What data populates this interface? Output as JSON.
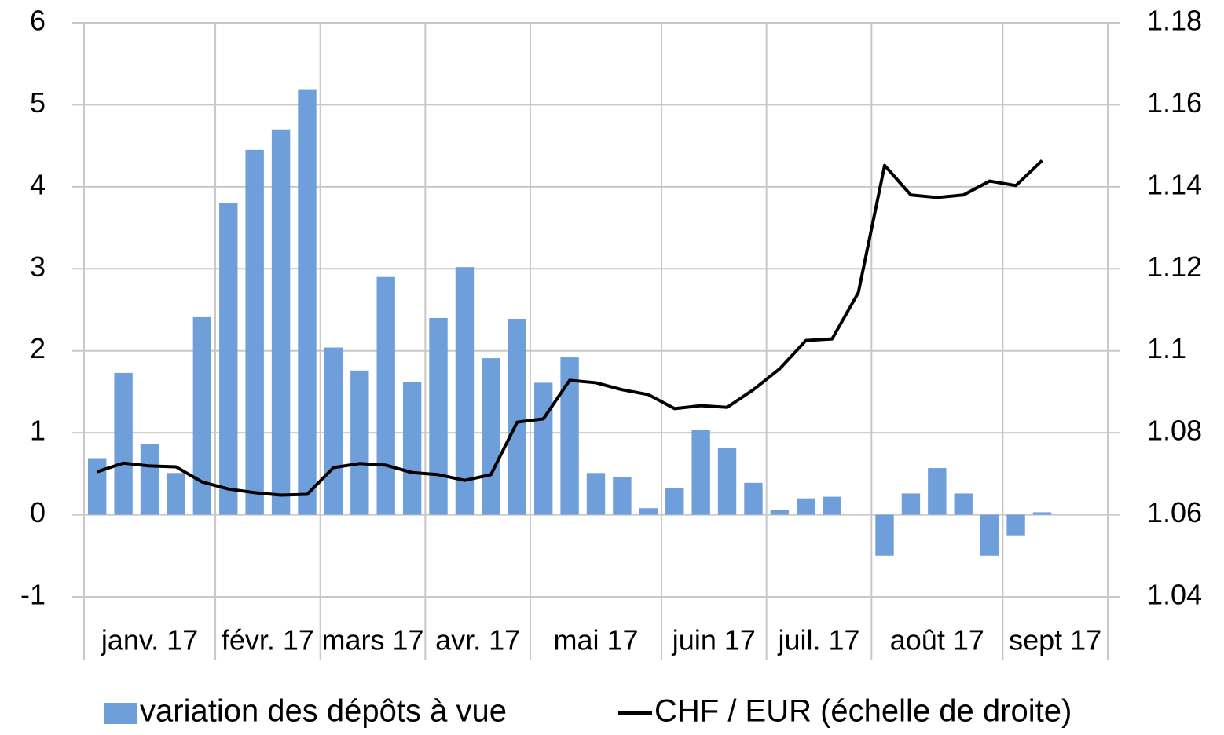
{
  "chart_data": {
    "type": "bar_line",
    "categories": [
      null,
      null,
      null,
      null,
      null,
      null,
      null,
      null,
      null,
      null,
      null,
      null,
      null,
      null,
      null,
      null,
      null,
      null,
      null,
      null,
      null,
      null,
      null,
      null,
      null,
      null,
      null,
      null,
      null,
      null,
      null,
      null,
      null,
      null,
      null,
      null,
      null,
      null,
      null
    ],
    "groups": [
      {
        "label": "janv. 17",
        "span": 5
      },
      {
        "label": "févr. 17",
        "span": 4
      },
      {
        "label": "mars 17",
        "span": 4
      },
      {
        "label": "avr. 17",
        "span": 4
      },
      {
        "label": "mai 17",
        "span": 5
      },
      {
        "label": "juin 17",
        "span": 4
      },
      {
        "label": "juil. 17",
        "span": 4
      },
      {
        "label": "août 17",
        "span": 5
      },
      {
        "label": "sept 17",
        "span": 4
      }
    ],
    "series": [
      {
        "name": "variation des dépôts à vue",
        "type": "bar",
        "color": "#6f9fdb",
        "values": [
          0.69,
          1.73,
          0.86,
          0.51,
          2.41,
          3.8,
          4.45,
          4.7,
          5.19,
          2.04,
          1.76,
          2.9,
          1.62,
          2.4,
          3.02,
          1.91,
          2.39,
          1.61,
          1.92,
          0.51,
          0.46,
          0.08,
          0.33,
          1.03,
          0.81,
          0.39,
          0.06,
          0.2,
          0.22,
          null,
          -0.5,
          0.26,
          0.57,
          0.26,
          -0.5,
          -0.25,
          0.03,
          null,
          null
        ]
      },
      {
        "name": "CHF / EUR (échelle de droite)",
        "type": "line",
        "axis": "y2",
        "color": "#000000",
        "values": [
          1.0705,
          1.0726,
          1.0719,
          1.0717,
          1.068,
          1.0663,
          1.0654,
          1.0648,
          1.065,
          1.0715,
          1.0725,
          1.0721,
          1.0703,
          1.0698,
          1.0684,
          1.0698,
          1.0826,
          1.0834,
          1.0928,
          1.0922,
          1.0905,
          1.0893,
          1.0859,
          1.0866,
          1.0862,
          1.0905,
          1.0956,
          1.1025,
          1.1029,
          1.1142,
          1.1452,
          1.138,
          1.1374,
          1.138,
          1.1414,
          1.1403,
          1.1464,
          null,
          null
        ]
      }
    ],
    "ylim": [
      -1,
      6
    ],
    "yticks": [
      -1,
      0,
      1,
      2,
      3,
      4,
      5,
      6
    ],
    "y2lim": [
      1.04,
      1.18
    ],
    "y2ticks": [
      1.04,
      1.06,
      1.08,
      1.1,
      1.12,
      1.14,
      1.16,
      1.18
    ],
    "grid": true,
    "legend": "bottom"
  }
}
